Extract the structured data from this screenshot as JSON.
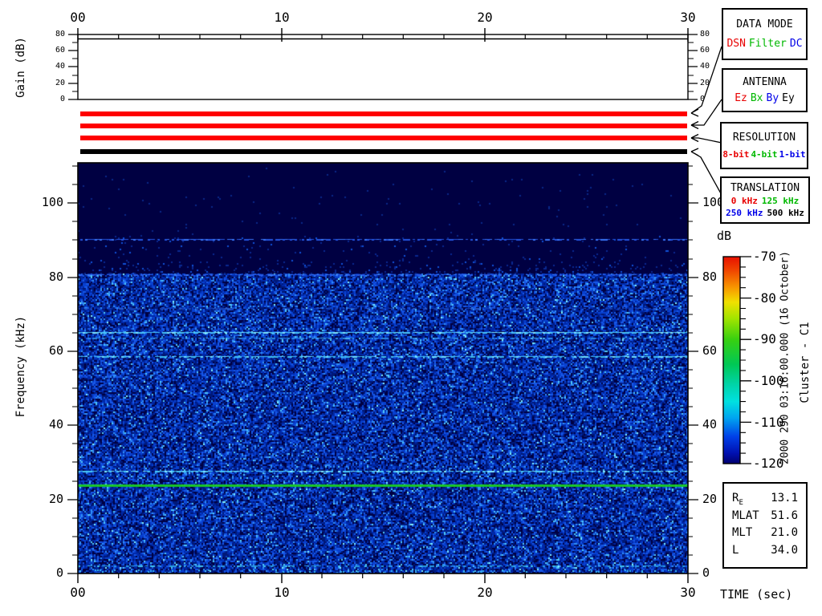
{
  "annotations": {
    "timestamp": "2000 290 03:16:00.000 (16 October)",
    "spacecraft": "Cluster - C1",
    "time_axis_label": "TIME (sec)",
    "freq_axis_label": "Frequency (kHz)",
    "gain_axis_label": "Gain (dB)",
    "colorbar_label": "dB"
  },
  "axes": {
    "time_ticks": [
      "00",
      "10",
      "20",
      "30"
    ],
    "freq_ticks": [
      "0",
      "20",
      "40",
      "60",
      "80",
      "100"
    ],
    "gain_ticks": [
      "0",
      "20",
      "40",
      "60",
      "80"
    ],
    "colorbar_ticks": [
      "-70",
      "-80",
      "-90",
      "-100",
      "-110",
      "-120"
    ]
  },
  "legend": {
    "boxes": [
      {
        "title": "DATA MODE",
        "items": [
          {
            "label": "DSN",
            "color": "#e80000"
          },
          {
            "label": "Filter",
            "color": "#00b800"
          },
          {
            "label": "DC",
            "color": "#0000e8"
          }
        ]
      },
      {
        "title": "ANTENNA",
        "items": [
          {
            "label": "Ez",
            "color": "#e80000"
          },
          {
            "label": "Bx",
            "color": "#00b800"
          },
          {
            "label": "By",
            "color": "#0000e8"
          },
          {
            "label": "Ey",
            "color": "#000000"
          }
        ]
      },
      {
        "title": "RESOLUTION",
        "items": [
          {
            "label": "8-bit",
            "color": "#e80000"
          },
          {
            "label": "4-bit",
            "color": "#00b800"
          },
          {
            "label": "1-bit",
            "color": "#0000e8"
          }
        ]
      },
      {
        "title": "TRANSLATION",
        "items": [
          {
            "label": "0 kHz",
            "color": "#e80000"
          },
          {
            "label": "125 kHz",
            "color": "#00b800"
          },
          {
            "label": "250 kHz",
            "color": "#0000e8"
          },
          {
            "label": "500 kHz",
            "color": "#000000"
          }
        ]
      }
    ]
  },
  "ephemeris": {
    "rows": [
      {
        "label": "R",
        "sub": "E",
        "value": "13.1"
      },
      {
        "label": "MLAT",
        "sub": "",
        "value": "51.6"
      },
      {
        "label": "MLT",
        "sub": "",
        "value": "21.0"
      },
      {
        "label": "L",
        "sub": "",
        "value": "34.0"
      }
    ]
  },
  "chart_data": [
    {
      "type": "line",
      "name": "receiver-gain-panel",
      "ylabel": "Gain (dB)",
      "xlabel": "TIME (sec)",
      "xlim": [
        0,
        30
      ],
      "ylim": [
        0,
        80
      ],
      "xticks": [
        0,
        10,
        20,
        30
      ],
      "yticks": [
        0,
        20,
        40,
        60,
        80
      ],
      "x": [
        0,
        30
      ],
      "values": [
        75,
        75
      ],
      "note": "constant receiver gain of ~75 dB across the whole 30 s interval"
    },
    {
      "type": "status-bars",
      "name": "instrument-status-bars",
      "bars": [
        {
          "name": "data-mode",
          "selected": "DSN",
          "color": "#ff0000"
        },
        {
          "name": "antenna",
          "selected": "Ez",
          "color": "#ff0000"
        },
        {
          "name": "resolution",
          "selected": "8-bit",
          "color": "#ff0000"
        },
        {
          "name": "translation",
          "selected": "500 kHz",
          "color": "#000000"
        }
      ]
    },
    {
      "type": "heatmap",
      "subtype": "spectrogram",
      "name": "wbd-spectrogram",
      "xlabel": "TIME (sec)",
      "ylabel": "Frequency (kHz)",
      "xlim": [
        0,
        30
      ],
      "ylim": [
        0,
        110.9
      ],
      "grid": false,
      "colorbar": {
        "label": "dB",
        "max": -70,
        "min": -120,
        "ticks": [
          -70,
          -80,
          -90,
          -100,
          -110,
          -120
        ],
        "orientation": "vertical",
        "position": "right"
      },
      "background": "dense broadband blue noise (~-112 dB) from 0 to ~81 kHz; sparse speckle 81-91 kHz; quiet dark navy (~-120 dB) above 91 kHz",
      "spectral_lines_khz": [
        {
          "f": 90.0,
          "level_db": -114,
          "desc": "faint blue interference line"
        },
        {
          "f": 80.5,
          "level_db": -113,
          "desc": "faint blue line at top edge of noise band"
        },
        {
          "f": 71.5,
          "level_db": -116,
          "desc": "very faint blue line"
        },
        {
          "f": 65.0,
          "level_db": -107,
          "desc": "bright cyan interference line"
        },
        {
          "f": 63.4,
          "level_db": -111,
          "desc": "weaker cyan companion line"
        },
        {
          "f": 58.5,
          "level_db": -108,
          "desc": "cyan interference line"
        },
        {
          "f": 27.5,
          "level_db": -108,
          "desc": "speckled cyan line"
        },
        {
          "f": 23.8,
          "level_db": -95,
          "desc": "bright solid green interference line"
        },
        {
          "f": 2.0,
          "level_db": -110,
          "desc": "faint dashed cyan line near bottom"
        }
      ]
    }
  ],
  "colors": {
    "bar_red": "#ff0000",
    "bar_black": "#000000",
    "spectrogram_bg": "#000042",
    "line_green": "#18c428",
    "line_cyan": "#48c4f8",
    "legend_red": "#e80000",
    "legend_green": "#00b800",
    "legend_blue": "#0000e8"
  }
}
